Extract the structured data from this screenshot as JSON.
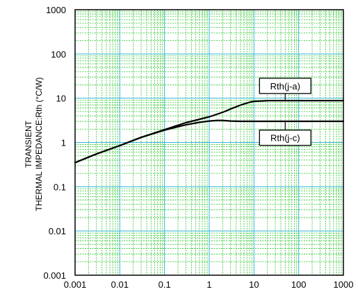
{
  "chart_data": {
    "type": "line",
    "title": "",
    "xlabel": "",
    "ylabel_lines": [
      "TRANSIENT",
      "THERMAL IMPEDANCE:Rth  (°C/W)"
    ],
    "x_scale": "log",
    "y_scale": "log",
    "xlim": [
      0.001,
      1000
    ],
    "ylim": [
      0.001,
      1000
    ],
    "x_ticks": [
      "0.001",
      "0.01",
      "0.1",
      "1",
      "10",
      "100",
      "1000"
    ],
    "y_ticks": [
      "0.001",
      "0.01",
      "0.1",
      "1",
      "10",
      "100",
      "1000"
    ],
    "grid": {
      "major": true,
      "minor": true,
      "major_color": "#33b5d8",
      "minor_color": "#27c427"
    },
    "series": [
      {
        "name": "Rth(j-a)",
        "color": "#000000",
        "x": [
          0.001,
          0.003,
          0.01,
          0.03,
          0.1,
          0.3,
          1,
          2,
          3,
          5,
          8,
          10,
          20,
          50,
          100,
          300,
          1000
        ],
        "y": [
          0.35,
          0.55,
          0.85,
          1.3,
          1.95,
          2.8,
          3.8,
          4.8,
          5.7,
          7.0,
          8.1,
          8.5,
          8.8,
          8.8,
          8.8,
          8.8,
          8.8
        ]
      },
      {
        "name": "Rth(j-c)",
        "color": "#000000",
        "x": [
          0.001,
          0.003,
          0.01,
          0.03,
          0.1,
          0.3,
          0.6,
          1,
          1.5,
          2,
          3,
          5,
          10,
          100,
          1000
        ],
        "y": [
          0.35,
          0.55,
          0.85,
          1.3,
          1.9,
          2.5,
          2.85,
          3.05,
          3.15,
          3.15,
          3.05,
          3.0,
          3.0,
          3.0,
          3.0
        ]
      }
    ],
    "annotations": [
      {
        "text": "Rth(j-a)",
        "series": "Rth(j-a)",
        "at_x": 50,
        "at_y": 19
      },
      {
        "text": "Rth(j-c)",
        "series": "Rth(j-c)",
        "at_x": 50,
        "at_y": 1.28
      }
    ]
  }
}
